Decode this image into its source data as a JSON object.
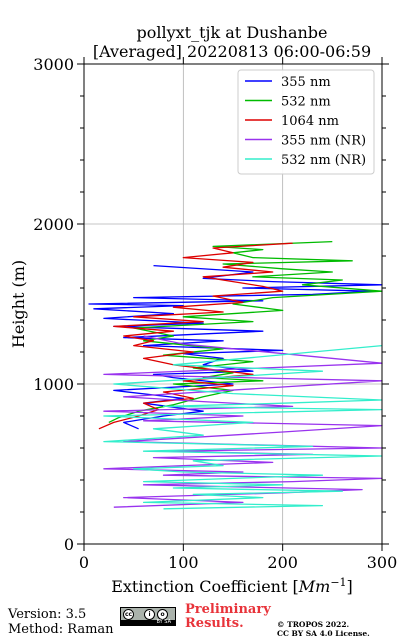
{
  "chart_data": {
    "type": "line",
    "title": "pollyxt_tjk at Dushanbe",
    "subtitle": "[Averaged] 20220813 06:00-06:59",
    "xlabel": "Extinction Coefficient",
    "xlabel_unit": "Mm",
    "xlabel_unit_exp": "−1",
    "ylabel": "Height (m)",
    "xlim": [
      0,
      300
    ],
    "ylim": [
      0,
      3000
    ],
    "xticks": [
      0,
      100,
      200,
      300
    ],
    "yticks": [
      0,
      1000,
      2000,
      3000
    ],
    "grid": true,
    "legend_position": "top-right",
    "series": [
      {
        "name": "355 nm",
        "color": "#0000ff",
        "x": [
          55,
          40,
          80,
          120,
          60,
          100,
          30,
          150,
          90,
          70,
          170,
          120,
          140,
          100,
          200,
          60,
          140,
          40,
          180,
          30,
          120,
          20,
          90,
          10,
          100,
          5,
          180,
          50,
          230,
          290,
          160,
          300,
          190,
          120,
          170,
          70
        ],
        "y": [
          720,
          760,
          800,
          830,
          880,
          910,
          960,
          1000,
          1040,
          1060,
          1080,
          1120,
          1160,
          1190,
          1210,
          1240,
          1270,
          1290,
          1330,
          1360,
          1380,
          1410,
          1440,
          1470,
          1490,
          1500,
          1520,
          1540,
          1560,
          1580,
          1600,
          1620,
          1640,
          1660,
          1700,
          1740
        ]
      },
      {
        "name": "532 nm",
        "color": "#00bb00",
        "x": [
          25,
          35,
          55,
          90,
          120,
          150,
          90,
          180,
          120,
          150,
          110,
          170,
          80,
          140,
          60,
          90,
          50,
          170,
          100,
          200,
          150,
          190,
          300,
          220,
          260,
          170,
          250,
          200,
          140,
          270,
          170,
          150,
          180,
          130,
          250
        ],
        "y": [
          760,
          790,
          830,
          870,
          920,
          960,
          1000,
          1020,
          1040,
          1070,
          1100,
          1140,
          1180,
          1220,
          1270,
          1300,
          1350,
          1390,
          1420,
          1460,
          1500,
          1540,
          1580,
          1620,
          1650,
          1670,
          1700,
          1720,
          1750,
          1770,
          1790,
          1820,
          1840,
          1860,
          1890
        ]
      },
      {
        "name": "1064 nm",
        "color": "#dd0000",
        "x": [
          15,
          30,
          55,
          75,
          60,
          110,
          80,
          150,
          100,
          170,
          130,
          90,
          60,
          110,
          50,
          70,
          40,
          90,
          30,
          120,
          50,
          140,
          90,
          160,
          130,
          200,
          180,
          150,
          120,
          190,
          140,
          170,
          100,
          150,
          130,
          210
        ],
        "y": [
          720,
          760,
          800,
          840,
          880,
          910,
          950,
          990,
          1020,
          1060,
          1090,
          1120,
          1160,
          1200,
          1240,
          1270,
          1300,
          1330,
          1360,
          1390,
          1420,
          1450,
          1480,
          1510,
          1550,
          1580,
          1610,
          1640,
          1670,
          1700,
          1730,
          1760,
          1790,
          1820,
          1850,
          1880
        ]
      },
      {
        "name": "355 nm (NR)",
        "color": "#9933ee",
        "x": [
          30,
          160,
          40,
          200,
          280,
          60,
          210,
          300,
          80,
          160,
          20,
          100,
          190,
          70,
          230,
          80,
          300,
          40,
          120,
          200,
          300,
          60,
          160,
          20,
          210,
          120,
          40,
          300,
          20,
          300,
          100,
          60
        ],
        "y": [
          230,
          260,
          290,
          320,
          340,
          370,
          390,
          410,
          430,
          450,
          470,
          490,
          510,
          540,
          560,
          580,
          600,
          640,
          670,
          700,
          740,
          770,
          800,
          830,
          860,
          890,
          920,
          1020,
          1060,
          1130,
          1250,
          1300
        ]
      },
      {
        "name": "532 nm (NR)",
        "color": "#33eecc",
        "x": [
          80,
          240,
          60,
          180,
          110,
          260,
          90,
          200,
          60,
          150,
          240,
          100,
          50,
          140,
          110,
          300,
          60,
          230,
          20,
          120,
          70,
          170,
          20,
          300,
          80,
          200,
          300,
          150,
          30,
          240,
          90,
          300
        ],
        "y": [
          220,
          240,
          260,
          290,
          310,
          330,
          350,
          370,
          390,
          410,
          430,
          450,
          470,
          490,
          520,
          550,
          580,
          610,
          640,
          680,
          720,
          760,
          800,
          840,
          860,
          880,
          900,
          940,
          1000,
          1080,
          1120,
          1240
        ]
      }
    ]
  },
  "footer": {
    "version": "Version: 3.5",
    "method": "Method: Raman",
    "license_badge_text": "BY SA",
    "preliminary_line1": "Preliminary",
    "preliminary_line2": "Results.",
    "copyright_line1": "© TROPOS 2022.",
    "copyright_line2": "CC BY SA 4.0 License."
  }
}
